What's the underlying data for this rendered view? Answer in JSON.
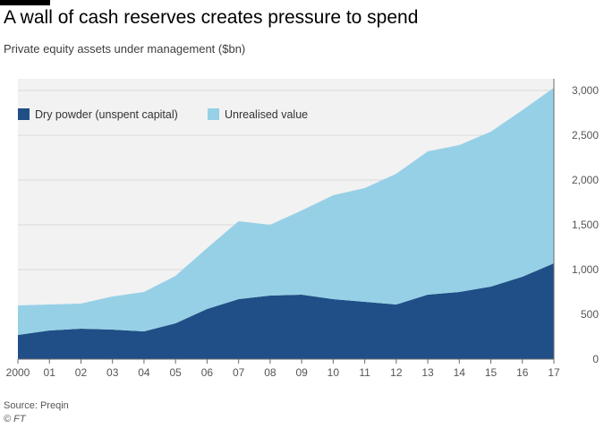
{
  "title": "A wall of cash reserves creates pressure to spend",
  "subtitle": "Private equity assets under management ($bn)",
  "source": "Source: Preqin",
  "copyright": "© FT",
  "chart_data": {
    "type": "area",
    "stacked": true,
    "categories": [
      "2000",
      "01",
      "02",
      "03",
      "04",
      "05",
      "06",
      "07",
      "08",
      "09",
      "10",
      "11",
      "12",
      "13",
      "14",
      "15",
      "16",
      "17"
    ],
    "series": [
      {
        "name": "Dry powder (unspent capital)",
        "color": "#1f4f86",
        "values": [
          270,
          320,
          340,
          330,
          310,
          400,
          560,
          670,
          710,
          720,
          670,
          640,
          610,
          720,
          750,
          810,
          920,
          1070
        ]
      },
      {
        "name": "Unrealised value",
        "color": "#96d0e6",
        "values": [
          330,
          290,
          280,
          370,
          440,
          530,
          680,
          870,
          790,
          940,
          1160,
          1270,
          1460,
          1600,
          1640,
          1730,
          1860,
          1960
        ]
      }
    ],
    "ylim": [
      0,
      3000
    ],
    "yticks": [
      0,
      500,
      1000,
      1500,
      2000,
      2500,
      3000
    ],
    "ytick_labels": [
      "0",
      "500",
      "1,000",
      "1,500",
      "2,000",
      "2,500",
      "3,000"
    ],
    "legend_position": "top-left",
    "grid": true
  }
}
